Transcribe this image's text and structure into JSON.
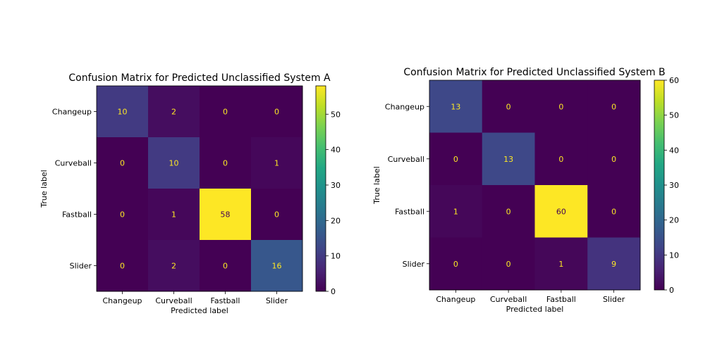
{
  "chart_data": [
    {
      "type": "heatmap",
      "title": "Confusion Matrix for Predicted Unclassified System A",
      "xlabel": "Predicted label",
      "ylabel": "True label",
      "x_categories": [
        "Changeup",
        "Curveball",
        "Fastball",
        "Slider"
      ],
      "y_categories": [
        "Changeup",
        "Curveball",
        "Fastball",
        "Slider"
      ],
      "values": [
        [
          10,
          2,
          0,
          0
        ],
        [
          0,
          10,
          0,
          1
        ],
        [
          0,
          1,
          58,
          0
        ],
        [
          0,
          2,
          0,
          16
        ]
      ],
      "colormap": "viridis",
      "colorbar": {
        "min": 0,
        "max": 58,
        "ticks": [
          0,
          10,
          20,
          30,
          40,
          50
        ]
      }
    },
    {
      "type": "heatmap",
      "title": "Confusion Matrix for Predicted Unclassified System B",
      "xlabel": "Predicted label",
      "ylabel": "True label",
      "x_categories": [
        "Changeup",
        "Curveball",
        "Fastball",
        "Slider"
      ],
      "y_categories": [
        "Changeup",
        "Curveball",
        "Fastball",
        "Slider"
      ],
      "values": [
        [
          13,
          0,
          0,
          0
        ],
        [
          0,
          13,
          0,
          0
        ],
        [
          1,
          0,
          60,
          0
        ],
        [
          0,
          0,
          1,
          9
        ]
      ],
      "colormap": "viridis",
      "colorbar": {
        "min": 0,
        "max": 60,
        "ticks": [
          0,
          10,
          20,
          30,
          40,
          50,
          60
        ]
      }
    }
  ],
  "colors": {
    "low": "#440154",
    "high": "#fde725",
    "text_on_dark": "#fde725",
    "text_on_light": "#440154"
  }
}
